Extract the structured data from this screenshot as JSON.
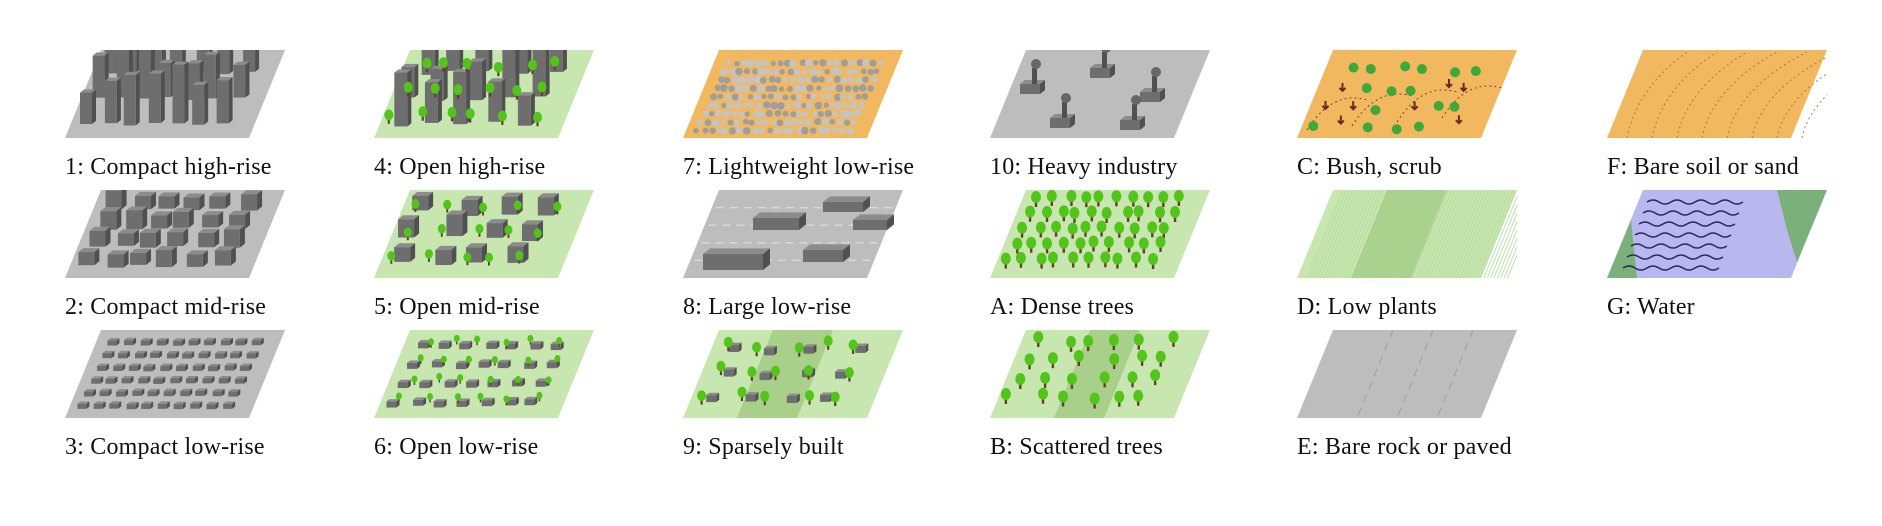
{
  "colors": {
    "gray_ground": "#bdbdbd",
    "gray_dark": "#9a9a9a",
    "green_light": "#c8e6b0",
    "green_mid": "#a8d08a",
    "soil": "#f2b860",
    "water": "#b8b8ee",
    "building_front": "#6e6e6e",
    "building_side": "#505050",
    "building_top": "#8c8c8c",
    "tree_canopy": "#52c41a",
    "tree_trunk": "#6b3a2a"
  },
  "classes": [
    {
      "id": "lcz-1",
      "label": "1: Compact high-rise",
      "icon": "compact-high-rise"
    },
    {
      "id": "lcz-2",
      "label": "2: Compact mid-rise",
      "icon": "compact-mid-rise"
    },
    {
      "id": "lcz-3",
      "label": "3: Compact low-rise",
      "icon": "compact-low-rise"
    },
    {
      "id": "lcz-4",
      "label": "4: Open high-rise",
      "icon": "open-high-rise"
    },
    {
      "id": "lcz-5",
      "label": "5: Open mid-rise",
      "icon": "open-mid-rise"
    },
    {
      "id": "lcz-6",
      "label": "6: Open low-rise",
      "icon": "open-low-rise"
    },
    {
      "id": "lcz-7",
      "label": "7: Lightweight low-rise",
      "icon": "lightweight-low-rise"
    },
    {
      "id": "lcz-8",
      "label": "8: Large low-rise",
      "icon": "large-low-rise"
    },
    {
      "id": "lcz-9",
      "label": "9: Sparsely built",
      "icon": "sparsely-built"
    },
    {
      "id": "lcz-10",
      "label": "10: Heavy industry",
      "icon": "heavy-industry"
    },
    {
      "id": "lcz-a",
      "label": "A: Dense trees",
      "icon": "dense-trees"
    },
    {
      "id": "lcz-b",
      "label": "B: Scattered trees",
      "icon": "scattered-trees"
    },
    {
      "id": "lcz-c",
      "label": "C: Bush, scrub",
      "icon": "bush-scrub"
    },
    {
      "id": "lcz-d",
      "label": "D: Low plants",
      "icon": "low-plants"
    },
    {
      "id": "lcz-e",
      "label": "E: Bare rock or paved",
      "icon": "bare-rock-paved"
    },
    {
      "id": "lcz-f",
      "label": "F: Bare soil or sand",
      "icon": "bare-soil-sand"
    },
    {
      "id": "lcz-g",
      "label": "G: Water",
      "icon": "water"
    }
  ]
}
